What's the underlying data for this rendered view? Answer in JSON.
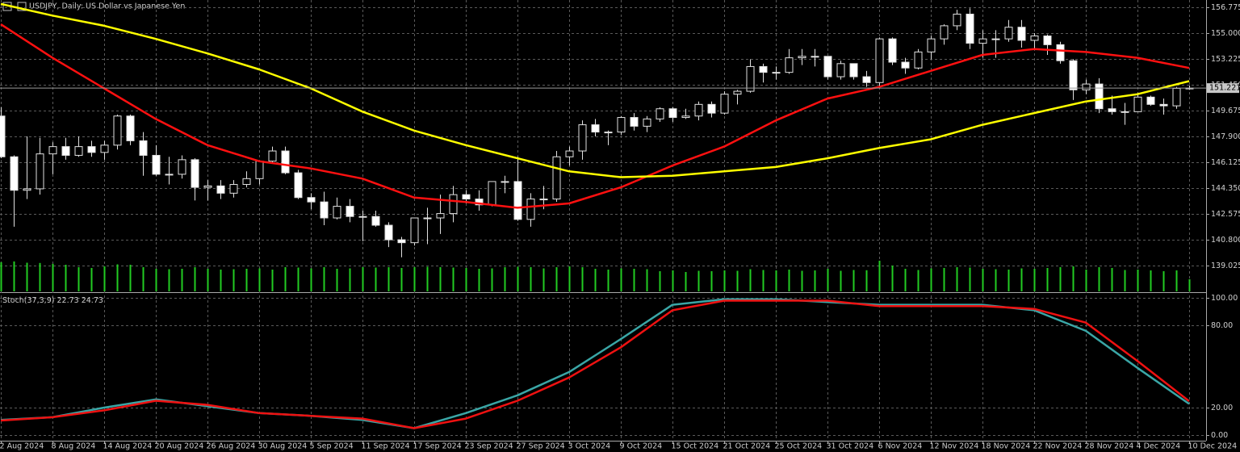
{
  "chart_data": {
    "type": "candlestick",
    "title": "USDJPY, Daily: US Dollar vs Japanese Yen",
    "categories": [
      "2 Aug 2024",
      null,
      null,
      null,
      "8 Aug 2024",
      null,
      null,
      null,
      "14 Aug 2024",
      null,
      null,
      null,
      "20 Aug 2024",
      null,
      null,
      null,
      "26 Aug 2024",
      null,
      null,
      null,
      "30 Aug 2024",
      null,
      null,
      null,
      "5 Sep 2024",
      null,
      null,
      null,
      "11 Sep 2024",
      null,
      null,
      null,
      "17 Sep 2024",
      null,
      null,
      null,
      "23 Sep 2024",
      null,
      null,
      null,
      "27 Sep 2024",
      null,
      null,
      null,
      "3 Oct 2024",
      null,
      null,
      null,
      "9 Oct 2024",
      null,
      null,
      null,
      "15 Oct 2024",
      null,
      null,
      null,
      "21 Oct 2024",
      null,
      null,
      null,
      "25 Oct 2024",
      null,
      null,
      null,
      "31 Oct 2024",
      null,
      null,
      null,
      "6 Nov 2024",
      null,
      null,
      null,
      "12 Nov 2024",
      null,
      null,
      null,
      "18 Nov 2024",
      null,
      null,
      null,
      "22 Nov 2024",
      null,
      null,
      null,
      "28 Nov 2024",
      null,
      null,
      null,
      "4 Dec 2024",
      null,
      null,
      null,
      "10 Dec 2024"
    ],
    "open": [
      149.3,
      146.5,
      144.2,
      144.3,
      146.7,
      147.2,
      146.6,
      147.2,
      146.8,
      147.3,
      149.3,
      147.6,
      146.6,
      145.3,
      145.3,
      146.3,
      144.4,
      144.5,
      144.0,
      144.6,
      145.0,
      146.2,
      146.9,
      145.4,
      143.7,
      143.4,
      142.3,
      143.1,
      142.4,
      142.4,
      141.8,
      140.8,
      140.6,
      142.3,
      142.3,
      142.6,
      143.9,
      143.6,
      143.2,
      144.8,
      144.8,
      142.2,
      143.6,
      143.6,
      146.5,
      146.9,
      148.7,
      148.2,
      148.2,
      149.2,
      148.6,
      149.1,
      149.8,
      149.2,
      149.3,
      150.1,
      149.5,
      150.8,
      151.0,
      152.7,
      152.3,
      152.3,
      153.3,
      153.4,
      153.4,
      152.0,
      152.9,
      152.0,
      151.6,
      154.6,
      153.0,
      152.6,
      153.7,
      154.6,
      155.5,
      156.3,
      154.3,
      154.6,
      154.6,
      155.4,
      154.5,
      154.8,
      154.2,
      153.1,
      151.1,
      151.5,
      149.8,
      149.6,
      149.6,
      150.6,
      150.1,
      150.0,
      151.2
    ],
    "high": [
      149.9,
      146.6,
      147.9,
      147.8,
      147.5,
      147.8,
      147.9,
      147.6,
      147.6,
      149.4,
      149.4,
      148.2,
      147.3,
      146.5,
      146.6,
      146.4,
      144.9,
      144.9,
      144.9,
      145.5,
      146.2,
      147.2,
      147.2,
      145.6,
      144.0,
      144.1,
      143.7,
      143.6,
      142.8,
      142.8,
      142.0,
      141.0,
      142.3,
      143.0,
      143.9,
      144.5,
      144.2,
      144.2,
      144.8,
      145.2,
      146.5,
      144.0,
      144.5,
      146.9,
      147.2,
      149.0,
      149.1,
      148.3,
      149.3,
      149.5,
      149.3,
      149.9,
      149.9,
      149.8,
      150.3,
      150.3,
      151.0,
      151.1,
      153.2,
      152.9,
      152.7,
      153.9,
      153.9,
      153.9,
      153.4,
      153.1,
      152.9,
      152.4,
      154.7,
      154.7,
      153.3,
      153.9,
      154.8,
      155.6,
      156.6,
      156.7,
      155.2,
      155.2,
      155.9,
      155.9,
      155.0,
      154.9,
      154.4,
      153.2,
      151.8,
      151.9,
      150.7,
      150.2,
      150.9,
      150.7,
      150.5,
      151.3,
      151.4
    ],
    "low": [
      146.4,
      141.7,
      143.6,
      143.9,
      145.3,
      146.3,
      146.5,
      146.5,
      146.3,
      147.0,
      147.3,
      145.2,
      145.2,
      144.6,
      145.0,
      143.5,
      143.5,
      143.6,
      143.7,
      144.4,
      144.6,
      146.1,
      145.3,
      143.6,
      142.9,
      141.8,
      142.2,
      142.0,
      140.7,
      141.7,
      140.3,
      139.6,
      140.4,
      140.5,
      141.2,
      142.0,
      143.3,
      142.8,
      143.1,
      144.0,
      142.1,
      141.7,
      142.9,
      143.4,
      145.9,
      146.3,
      147.9,
      147.3,
      148.0,
      148.3,
      148.2,
      148.9,
      148.9,
      149.1,
      149.0,
      149.2,
      149.4,
      150.1,
      150.9,
      151.6,
      151.8,
      152.2,
      152.8,
      152.7,
      151.8,
      151.8,
      151.8,
      151.3,
      151.3,
      152.8,
      152.2,
      152.5,
      153.2,
      154.2,
      155.2,
      153.9,
      153.3,
      153.3,
      154.4,
      154.0,
      153.9,
      153.5,
      152.9,
      150.4,
      150.8,
      149.5,
      149.4,
      148.7,
      149.6,
      150.0,
      149.4,
      149.8,
      151.1
    ],
    "close": [
      146.5,
      144.2,
      144.3,
      146.7,
      147.2,
      146.6,
      147.2,
      146.8,
      147.3,
      149.3,
      147.6,
      146.6,
      145.3,
      145.3,
      146.3,
      144.4,
      144.5,
      144.0,
      144.6,
      145.0,
      146.2,
      146.9,
      145.4,
      143.7,
      143.4,
      142.3,
      143.1,
      142.4,
      142.4,
      141.8,
      140.8,
      140.6,
      142.3,
      142.3,
      142.6,
      143.9,
      143.6,
      143.2,
      144.8,
      144.8,
      142.2,
      143.6,
      143.6,
      146.5,
      146.9,
      148.7,
      148.2,
      148.2,
      149.2,
      148.6,
      149.1,
      149.8,
      149.2,
      149.3,
      150.1,
      149.5,
      150.8,
      151.0,
      152.7,
      152.3,
      152.3,
      153.3,
      153.4,
      153.4,
      152.0,
      152.9,
      152.0,
      151.6,
      154.6,
      153.0,
      152.6,
      153.7,
      154.6,
      155.5,
      156.3,
      154.3,
      154.6,
      154.6,
      155.4,
      154.5,
      154.8,
      154.2,
      153.1,
      151.1,
      151.5,
      149.8,
      149.6,
      149.6,
      150.6,
      150.1,
      150.0,
      151.2,
      151.22
    ],
    "volume": [
      362000,
      371000,
      355000,
      352000,
      341000,
      330000,
      300000,
      290000,
      310000,
      335000,
      330000,
      300000,
      280000,
      275000,
      280000,
      300000,
      280000,
      270000,
      275000,
      280000,
      285000,
      270000,
      300000,
      295000,
      285000,
      300000,
      280000,
      285000,
      300000,
      295000,
      300000,
      290000,
      300000,
      305000,
      300000,
      295000,
      290000,
      280000,
      285000,
      300000,
      305000,
      300000,
      285000,
      300000,
      310000,
      300000,
      280000,
      270000,
      285000,
      280000,
      275000,
      250000,
      260000,
      240000,
      255000,
      250000,
      260000,
      255000,
      275000,
      265000,
      260000,
      270000,
      255000,
      260000,
      280000,
      255000,
      265000,
      262000,
      380000,
      320000,
      280000,
      265000,
      285000,
      290000,
      300000,
      295000,
      280000,
      275000,
      270000,
      285000,
      280000,
      290000,
      300000,
      310000,
      270000,
      300000,
      290000,
      265000,
      270000,
      260000,
      250000,
      260000,
      150000
    ],
    "volume_color": "#22cc22",
    "bull_color": "#000000",
    "bear_color": "#ffffff",
    "ylim": [
      137.2,
      157.27
    ],
    "yticks": [
      156.775,
      {
        "value": 155.0,
        "label": "155.000"
      },
      153.225,
      {
        "value": 151.45,
        "label": "151.450"
      },
      149.675,
      {
        "value": 147.9,
        "label": "147.900"
      },
      146.125,
      {
        "value": 144.35,
        "label": "144.350"
      },
      142.575,
      {
        "value": 140.8,
        "label": "140.800"
      },
      139.025
    ],
    "grid": true,
    "bid": 151.221,
    "moving_averages": {
      "x": [
        0,
        4,
        8,
        12,
        16,
        20,
        24,
        28,
        32,
        36,
        40,
        44,
        48,
        52,
        56,
        60,
        64,
        68,
        72,
        76,
        80,
        84,
        88,
        92
      ],
      "series": [
        {
          "color": "#ff1010",
          "values": [
            155.6,
            153.3,
            151.2,
            149.1,
            147.3,
            146.2,
            145.7,
            145.0,
            143.7,
            143.4,
            143.0,
            143.3,
            144.4,
            145.9,
            147.2,
            149.0,
            150.5,
            151.3,
            152.4,
            153.5,
            153.9,
            153.7,
            153.3,
            152.6
          ]
        },
        {
          "color": "#ffff00",
          "values": [
            157.0,
            156.2,
            155.5,
            154.6,
            153.6,
            152.5,
            151.2,
            149.6,
            148.3,
            147.3,
            146.4,
            145.5,
            145.1,
            145.2,
            145.5,
            145.8,
            146.4,
            147.1,
            147.7,
            148.7,
            149.5,
            150.3,
            150.8,
            151.7
          ]
        }
      ]
    },
    "stochastic": {
      "label": "Stoch(37,3,9)",
      "ylim": [
        -4.1,
        103
      ],
      "yticks": [
        {
          "value": 100,
          "label": "100.00"
        },
        {
          "value": 80,
          "label": "80.00"
        },
        {
          "value": 20,
          "label": "20.00"
        },
        {
          "value": 0,
          "label": "0.00"
        }
      ],
      "x": [
        0,
        4,
        8,
        12,
        16,
        20,
        24,
        28,
        32,
        36,
        40,
        44,
        48,
        52,
        56,
        60,
        64,
        68,
        72,
        76,
        80,
        84,
        88,
        92
      ],
      "series": [
        {
          "color": "#3aa6a6",
          "values": [
            11,
            13,
            20,
            26,
            21,
            16,
            14,
            11,
            5,
            16,
            29,
            46,
            70,
            95,
            99,
            99,
            97,
            95,
            95,
            95,
            91,
            76,
            49,
            22.73
          ]
        },
        {
          "color": "#ee1111",
          "values": [
            10.6,
            13,
            18,
            25,
            22,
            16,
            14,
            12,
            5,
            12,
            25,
            42,
            64,
            91,
            98,
            98,
            98,
            94,
            94,
            94,
            92,
            82,
            54,
            24.73
          ]
        }
      ]
    }
  }
}
